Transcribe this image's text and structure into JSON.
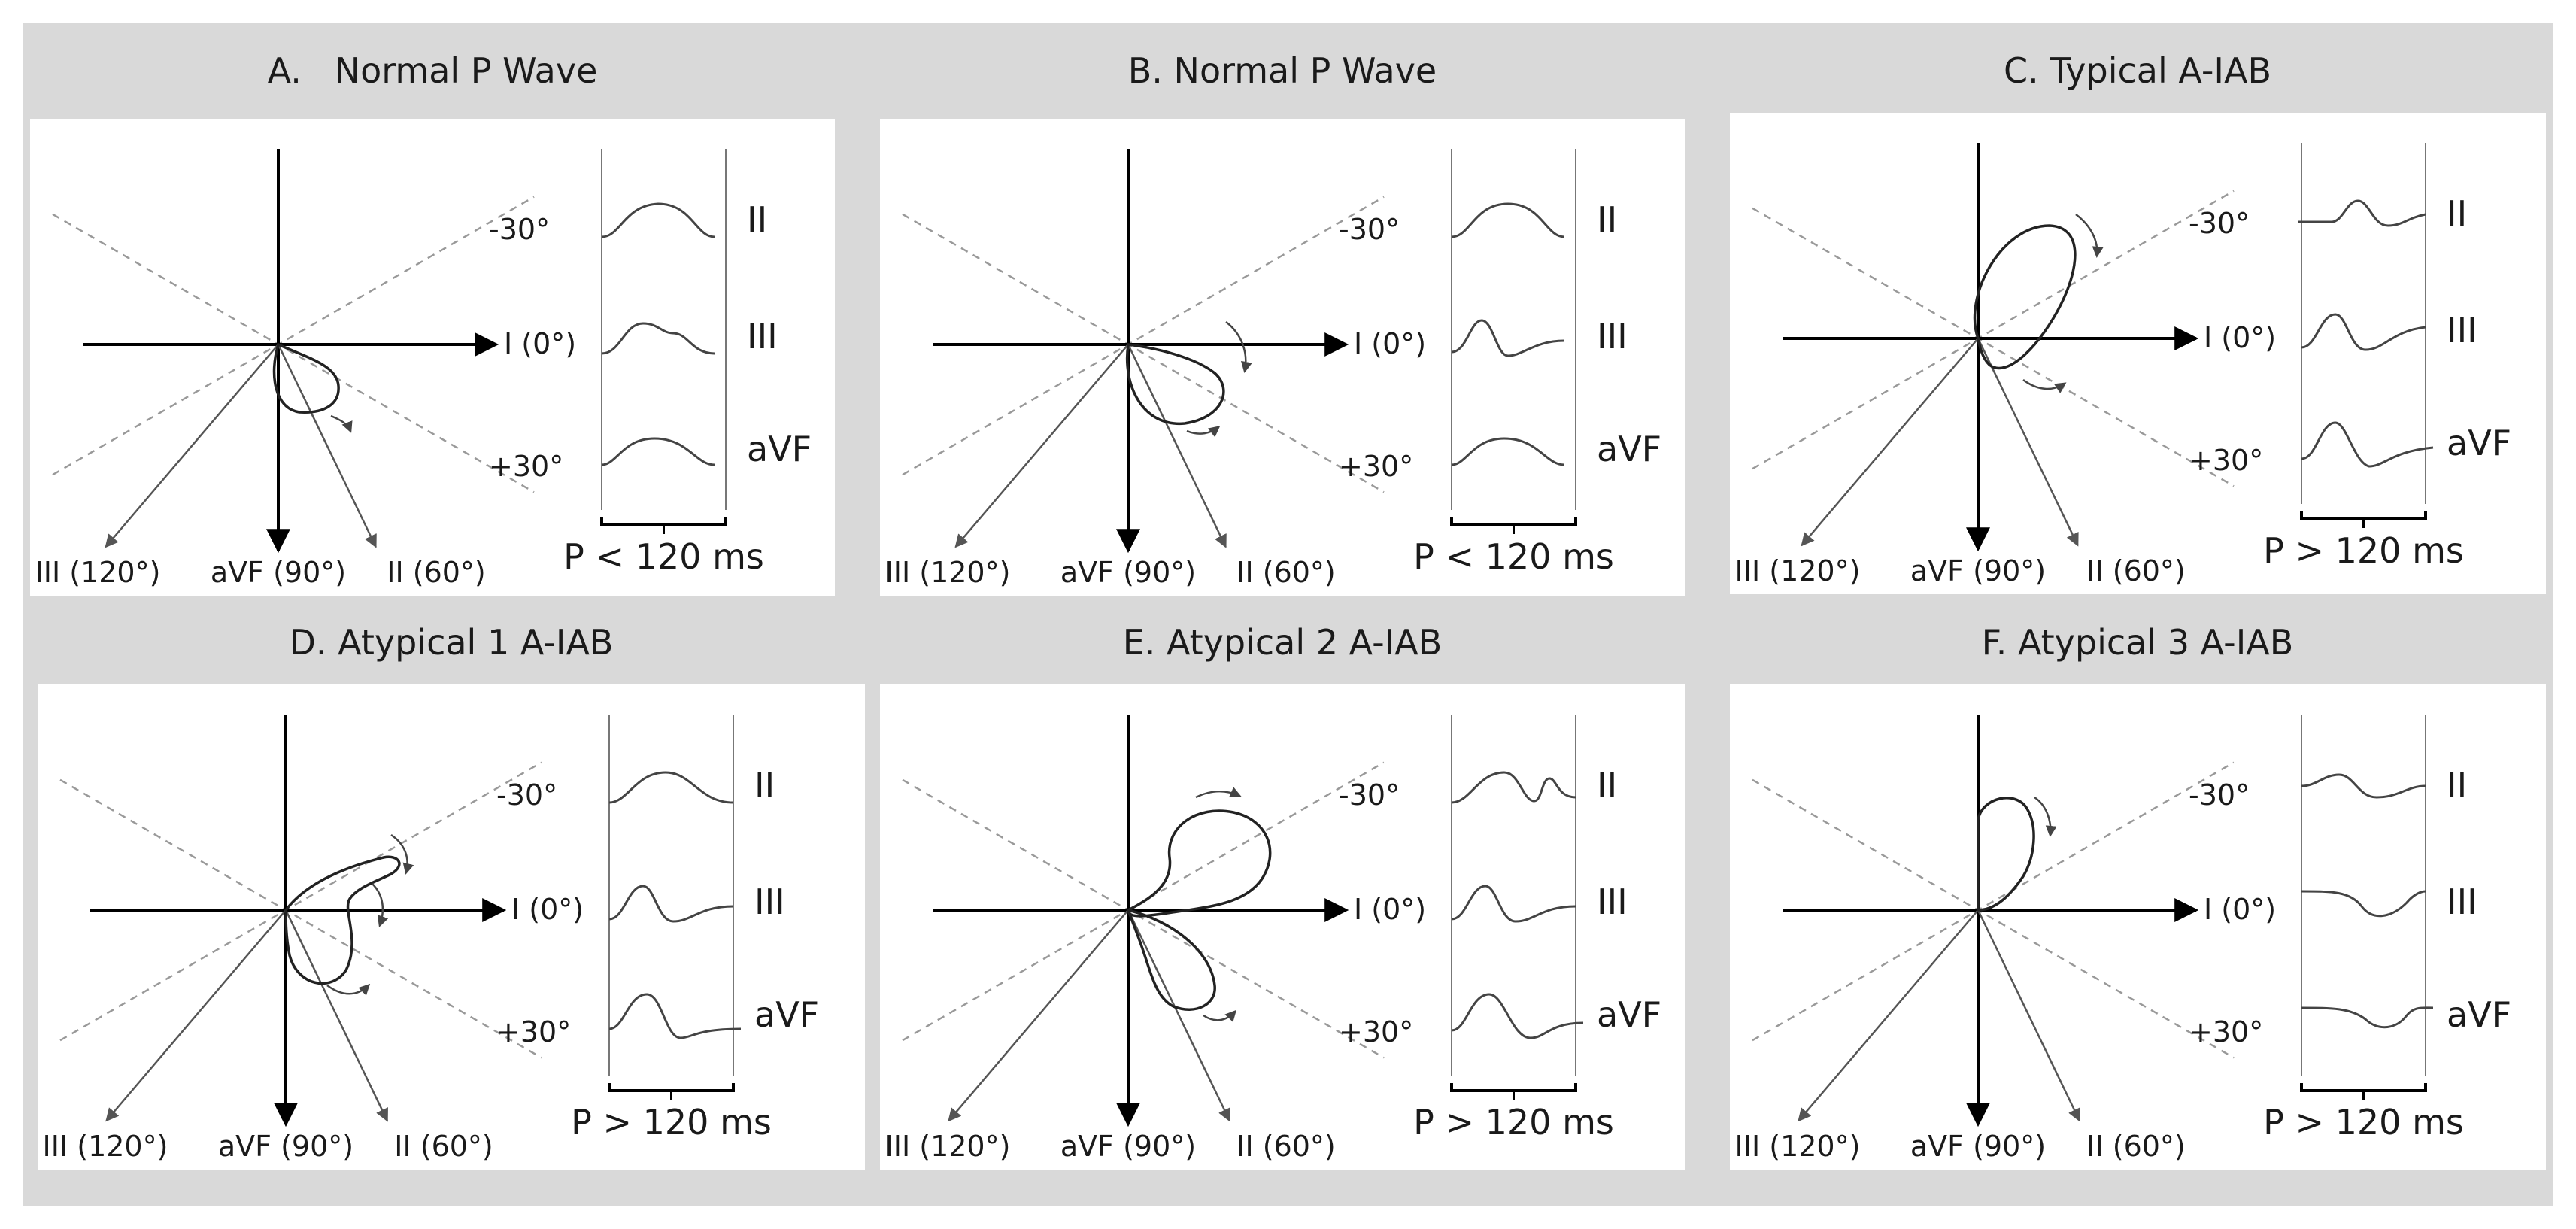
{
  "labels": {
    "lead_I": "I (0°)",
    "lead_II": "II (60°)",
    "lead_III": "III (120°)",
    "lead_aVF": "aVF (90°)",
    "minus30": "-30°",
    "plus30": "+30°",
    "trace_II": "II",
    "trace_III": "III",
    "trace_aVF": "aVF"
  },
  "panels": [
    {
      "id": "A",
      "title": "A.   Normal P Wave",
      "duration": "P < 120 ms",
      "pattern": "normal-1"
    },
    {
      "id": "B",
      "title": "B. Normal P Wave",
      "duration": "P < 120 ms",
      "pattern": "normal-2"
    },
    {
      "id": "C",
      "title": "C. Typical A-IAB",
      "duration": "P > 120 ms",
      "pattern": "typical"
    },
    {
      "id": "D",
      "title": "D. Atypical 1 A-IAB",
      "duration": "P > 120 ms",
      "pattern": "atypical-1"
    },
    {
      "id": "E",
      "title": "E. Atypical 2 A-IAB",
      "duration": "P > 120 ms",
      "pattern": "atypical-2"
    },
    {
      "id": "F",
      "title": "F. Atypical 3 A-IAB",
      "duration": "P > 120 ms",
      "pattern": "atypical-3"
    }
  ],
  "colors": {
    "background": "#d9d9d9",
    "panel": "#ffffff",
    "axis": "#000000",
    "dashed": "#999999",
    "lead_arrow": "#555555",
    "trace": "#444444",
    "text": "#1a1a1a"
  }
}
